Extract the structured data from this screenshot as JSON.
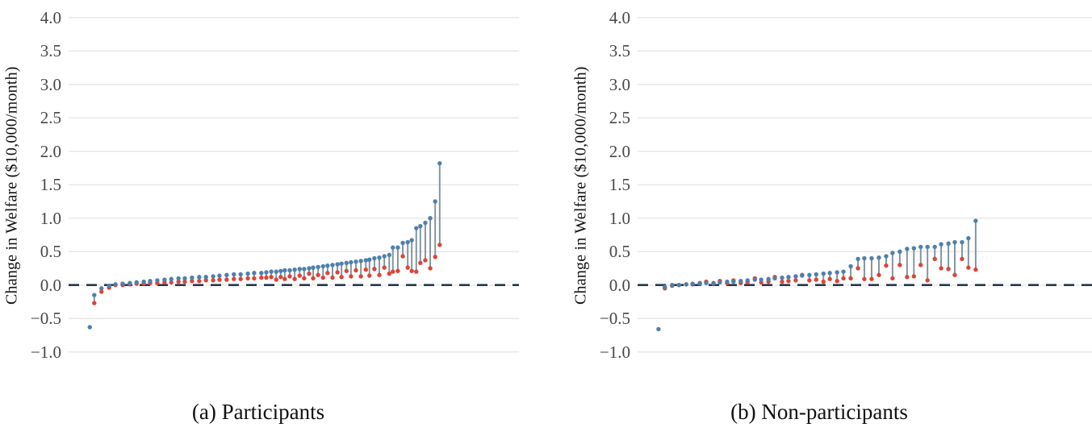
{
  "figure": {
    "ylabel": "Change in Welfare ($10,000/month)",
    "yticks": [
      4.0,
      3.5,
      3.0,
      2.5,
      2.0,
      1.5,
      1.0,
      0.5,
      0.0,
      -0.5,
      -1.0
    ],
    "ytick_labels": [
      "4.0",
      "3.5",
      "3.0",
      "2.5",
      "2.0",
      "1.5",
      "1.0",
      "0.5",
      "0.0",
      "−0.5",
      "−1.0"
    ],
    "zero_line_value": 0.0
  },
  "colors": {
    "upper_dot": "#4d80ad",
    "lower_dot": "#dc4437",
    "connector_line": "#7e929c",
    "zero_dashed_line": "#24394d",
    "grid_line": "#e8e8e8",
    "tick_text": "#474747",
    "label_text": "#111111",
    "background": "#ffffff"
  },
  "chart_data": [
    {
      "type": "scatter",
      "subtype": "dumbbell-lollipop",
      "title": "(a) Participants",
      "xlabel": "",
      "ylabel": "Change in Welfare ($10,000/month)",
      "ylim": [
        -1.0,
        4.0
      ],
      "yticks": [
        4.0,
        3.5,
        3.0,
        2.5,
        2.0,
        1.5,
        1.0,
        0.5,
        0.0,
        -0.5,
        -1.0
      ],
      "grid": "horizontal",
      "legend": "none",
      "zero_line": "dashed",
      "series_names": [
        "upper (blue)",
        "lower (red)"
      ],
      "point_format": [
        "x_fraction_of_plot_width",
        "upper_value",
        "lower_value_or_null"
      ],
      "points": [
        [
          0.047,
          -0.63,
          null
        ],
        [
          0.057,
          -0.15,
          -0.27
        ],
        [
          0.073,
          -0.05,
          -0.1
        ],
        [
          0.09,
          -0.01,
          -0.04
        ],
        [
          0.104,
          0.01,
          0.0
        ],
        [
          0.12,
          0.02,
          0.0
        ],
        [
          0.136,
          0.03,
          0.01
        ],
        [
          0.151,
          0.04,
          0.02
        ],
        [
          0.167,
          0.05,
          0.02
        ],
        [
          0.181,
          0.06,
          0.03
        ],
        [
          0.197,
          0.07,
          0.03
        ],
        [
          0.213,
          0.08,
          0.04
        ],
        [
          0.228,
          0.09,
          0.04
        ],
        [
          0.244,
          0.1,
          0.05
        ],
        [
          0.258,
          0.1,
          0.05
        ],
        [
          0.274,
          0.11,
          0.06
        ],
        [
          0.29,
          0.12,
          0.06
        ],
        [
          0.305,
          0.12,
          0.07
        ],
        [
          0.321,
          0.13,
          0.07
        ],
        [
          0.335,
          0.14,
          0.08
        ],
        [
          0.351,
          0.15,
          0.08
        ],
        [
          0.367,
          0.16,
          0.09
        ],
        [
          0.382,
          0.16,
          0.09
        ],
        [
          0.398,
          0.17,
          0.1
        ],
        [
          0.412,
          0.18,
          0.1
        ],
        [
          0.428,
          0.18,
          0.11
        ],
        [
          0.439,
          0.19,
          0.11
        ],
        [
          0.45,
          0.2,
          0.12
        ],
        [
          0.461,
          0.2,
          0.08
        ],
        [
          0.471,
          0.21,
          0.12
        ],
        [
          0.48,
          0.22,
          0.09
        ],
        [
          0.491,
          0.22,
          0.13
        ],
        [
          0.502,
          0.23,
          0.09
        ],
        [
          0.513,
          0.24,
          0.14
        ],
        [
          0.523,
          0.24,
          0.1
        ],
        [
          0.534,
          0.25,
          0.17
        ],
        [
          0.543,
          0.26,
          0.1
        ],
        [
          0.554,
          0.27,
          0.15
        ],
        [
          0.565,
          0.28,
          0.11
        ],
        [
          0.575,
          0.29,
          0.18
        ],
        [
          0.586,
          0.3,
          0.11
        ],
        [
          0.597,
          0.31,
          0.19
        ],
        [
          0.606,
          0.32,
          0.12
        ],
        [
          0.617,
          0.33,
          0.21
        ],
        [
          0.627,
          0.34,
          0.13
        ],
        [
          0.638,
          0.35,
          0.22
        ],
        [
          0.649,
          0.36,
          0.13
        ],
        [
          0.66,
          0.37,
          0.23
        ],
        [
          0.668,
          0.38,
          0.14
        ],
        [
          0.679,
          0.4,
          0.24
        ],
        [
          0.69,
          0.41,
          0.15
        ],
        [
          0.701,
          0.43,
          0.26
        ],
        [
          0.712,
          0.45,
          0.17
        ],
        [
          0.72,
          0.56,
          0.2
        ],
        [
          0.731,
          0.56,
          0.21
        ],
        [
          0.742,
          0.63,
          0.43
        ],
        [
          0.753,
          0.64,
          0.26
        ],
        [
          0.762,
          0.67,
          0.21
        ],
        [
          0.772,
          0.85,
          0.2
        ],
        [
          0.781,
          0.88,
          0.33
        ],
        [
          0.792,
          0.93,
          0.37
        ],
        [
          0.803,
          1.0,
          0.25
        ],
        [
          0.814,
          1.25,
          0.42
        ],
        [
          0.824,
          1.82,
          0.6
        ]
      ]
    },
    {
      "type": "scatter",
      "subtype": "dumbbell-lollipop",
      "title": "(b) Non-participants",
      "xlabel": "",
      "ylabel": "Change in Welfare ($10,000/month)",
      "ylim": [
        -1.0,
        4.0
      ],
      "yticks": [
        4.0,
        3.5,
        3.0,
        2.5,
        2.0,
        1.5,
        1.0,
        0.5,
        0.0,
        -0.5,
        -1.0
      ],
      "grid": "horizontal",
      "legend": "none",
      "zero_line": "dashed",
      "series_names": [
        "upper (blue)",
        "lower (red)"
      ],
      "point_format": [
        "x_fraction_of_plot_width",
        "upper_value",
        "lower_value_or_null"
      ],
      "points": [
        [
          0.046,
          -0.66,
          null
        ],
        [
          0.06,
          -0.03,
          -0.05
        ],
        [
          0.076,
          0.0,
          -0.01
        ],
        [
          0.091,
          0.0,
          0.0
        ],
        [
          0.107,
          0.01,
          0.01
        ],
        [
          0.121,
          0.02,
          0.01
        ],
        [
          0.137,
          0.02,
          0.03
        ],
        [
          0.151,
          0.03,
          0.05
        ],
        [
          0.167,
          0.03,
          0.02
        ],
        [
          0.181,
          0.04,
          0.06
        ],
        [
          0.197,
          0.05,
          0.03
        ],
        [
          0.211,
          0.05,
          0.07
        ],
        [
          0.227,
          0.06,
          0.03
        ],
        [
          0.242,
          0.07,
          0.04
        ],
        [
          0.258,
          0.08,
          0.1
        ],
        [
          0.272,
          0.08,
          0.04
        ],
        [
          0.288,
          0.09,
          0.05
        ],
        [
          0.302,
          0.1,
          0.12
        ],
        [
          0.318,
          0.11,
          0.05
        ],
        [
          0.332,
          0.12,
          0.06
        ],
        [
          0.348,
          0.13,
          0.07
        ],
        [
          0.362,
          0.14,
          0.15
        ],
        [
          0.378,
          0.15,
          0.07
        ],
        [
          0.393,
          0.16,
          0.08
        ],
        [
          0.409,
          0.17,
          0.05
        ],
        [
          0.423,
          0.18,
          0.09
        ],
        [
          0.439,
          0.19,
          0.06
        ],
        [
          0.453,
          0.2,
          0.1
        ],
        [
          0.469,
          0.28,
          0.1
        ],
        [
          0.485,
          0.39,
          0.25
        ],
        [
          0.499,
          0.4,
          0.09
        ],
        [
          0.515,
          0.4,
          0.09
        ],
        [
          0.531,
          0.41,
          0.15
        ],
        [
          0.547,
          0.43,
          0.29
        ],
        [
          0.561,
          0.48,
          0.1
        ],
        [
          0.577,
          0.5,
          0.3
        ],
        [
          0.593,
          0.54,
          0.12
        ],
        [
          0.608,
          0.55,
          0.13
        ],
        [
          0.623,
          0.57,
          0.3
        ],
        [
          0.638,
          0.57,
          0.07
        ],
        [
          0.654,
          0.57,
          0.39
        ],
        [
          0.668,
          0.61,
          0.25
        ],
        [
          0.684,
          0.62,
          0.24
        ],
        [
          0.698,
          0.64,
          0.15
        ],
        [
          0.714,
          0.64,
          0.39
        ],
        [
          0.728,
          0.7,
          0.26
        ],
        [
          0.744,
          0.96,
          0.23
        ]
      ]
    }
  ]
}
